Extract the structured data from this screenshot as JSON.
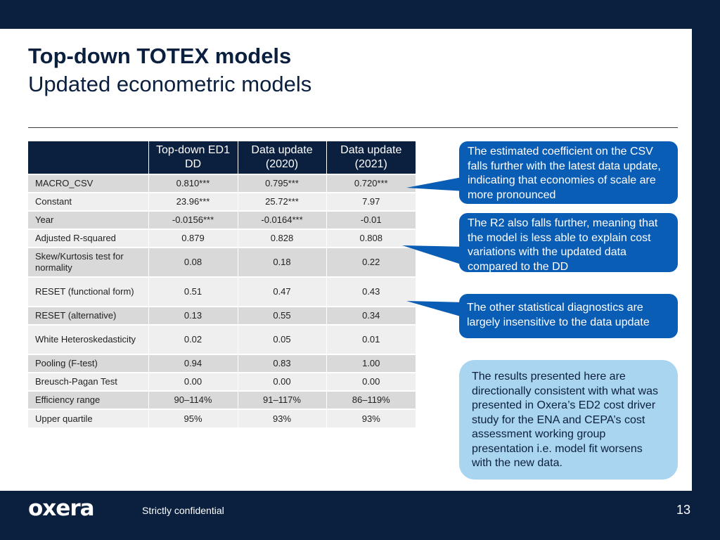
{
  "slide": {
    "title": "Top-down TOTEX models",
    "subtitle": "Updated econometric models"
  },
  "table": {
    "headers": [
      "",
      "Top-down ED1 DD",
      "Data update (2020)",
      "Data update (2021)"
    ],
    "rows": [
      {
        "label": "MACRO_CSV",
        "values": [
          "0.810***",
          "0.795***",
          "0.720***"
        ]
      },
      {
        "label": "Constant",
        "values": [
          "23.96***",
          "25.72***",
          "7.97"
        ]
      },
      {
        "label": "Year",
        "values": [
          "-0.0156***",
          "-0.0164***",
          "-0.01"
        ]
      },
      {
        "label": "Adjusted R-squared",
        "values": [
          "0.879",
          "0.828",
          "0.808"
        ]
      },
      {
        "label": "Skew/Kurtosis test for normality",
        "values": [
          "0.08",
          "0.18",
          "0.22"
        ]
      },
      {
        "label": "RESET (functional form)",
        "values": [
          "0.51",
          "0.47",
          "0.43"
        ]
      },
      {
        "label": "RESET (alternative)",
        "values": [
          "0.13",
          "0.55",
          "0.34"
        ]
      },
      {
        "label": "White Heteroskedasticity",
        "values": [
          "0.02",
          "0.05",
          "0.01"
        ]
      },
      {
        "label": "Pooling (F-test)",
        "values": [
          "0.94",
          "0.83",
          "1.00"
        ]
      },
      {
        "label": "Breusch-Pagan Test",
        "values": [
          "0.00",
          "0.00",
          "0.00"
        ]
      },
      {
        "label": "Efficiency range",
        "values": [
          "90–114%",
          "91–117%",
          "86–119%"
        ]
      },
      {
        "label": "Upper quartile",
        "values": [
          "95%",
          "93%",
          "93%"
        ]
      }
    ]
  },
  "callouts": {
    "csv": "The estimated coefficient on the CSV falls further with the latest data update, indicating that economies of scale are more pronounced",
    "r2": "The R2 also falls further, meaning that the model is less able to explain cost variations with the updated data compared to the DD",
    "diagnostics": "The other statistical diagnostics are largely insensitive to the data update"
  },
  "note": "The results presented here are directionally consistent with what was presented in Oxera’s ED2 cost driver study for the ENA and CEPA’s cost assessment working group presentation i.e. model fit worsens with the new data.",
  "footer": {
    "logo": "oxera",
    "confidential": "Strictly confidential",
    "page_number": "13"
  },
  "colors": {
    "navy": "#0b1f3f",
    "callout_blue": "#0a5db4",
    "note_light_blue": "#a9d5f0"
  }
}
